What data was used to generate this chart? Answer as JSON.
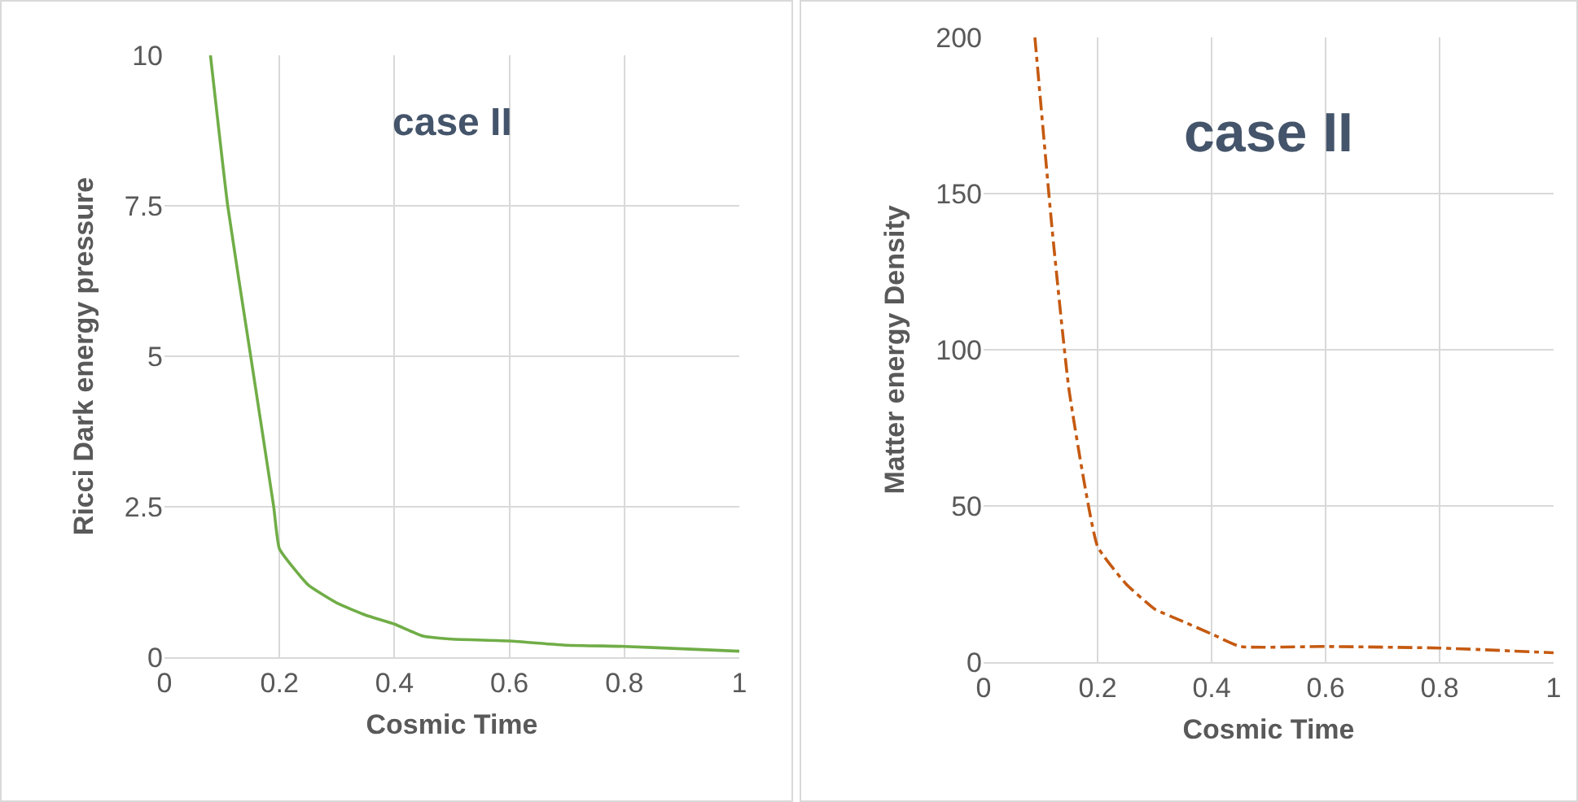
{
  "chart_data": [
    {
      "type": "line",
      "title": "case II",
      "xlabel": "Cosmic Time",
      "ylabel": "Ricci Dark energy pressure",
      "series": [
        {
          "color": "#70ad47",
          "x": [
            0.08,
            0.11,
            0.15,
            0.19,
            0.2,
            0.25,
            0.3,
            0.35,
            0.4,
            0.45,
            0.5,
            0.6,
            0.7,
            0.8,
            0.9,
            1
          ],
          "values": [
            10,
            7.5,
            5,
            2.5,
            1.8,
            1.2,
            0.9,
            0.7,
            0.55,
            0.35,
            0.3,
            0.27,
            0.2,
            0.18,
            0.14,
            0.1
          ]
        }
      ],
      "xlim": [
        0,
        1
      ],
      "xticks": [
        0,
        0.2,
        0.4,
        0.6,
        0.8,
        1
      ],
      "ylim": [
        0,
        10
      ],
      "yticks": [
        0,
        2.5,
        5,
        7.5,
        10
      ],
      "grid": true,
      "marker": "none",
      "line_style": "solid"
    },
    {
      "type": "line",
      "title": "case II",
      "xlabel": "Cosmic Time",
      "ylabel": "Matter energy Density",
      "series": [
        {
          "color": "#c55a11",
          "x": [
            0.09,
            0.12,
            0.15,
            0.2,
            0.25,
            0.3,
            0.35,
            0.4,
            0.45,
            0.6,
            0.8,
            1
          ],
          "values": [
            200,
            139,
            87,
            37,
            25,
            17,
            13,
            9,
            5,
            5,
            4.5,
            3
          ]
        }
      ],
      "xlim": [
        0,
        1
      ],
      "xticks": [
        0,
        0.2,
        0.4,
        0.6,
        0.8,
        1
      ],
      "ylim": [
        0,
        200
      ],
      "yticks": [
        0,
        50,
        100,
        150,
        200
      ],
      "grid": true,
      "marker": "none",
      "line_style": "dashed"
    }
  ]
}
